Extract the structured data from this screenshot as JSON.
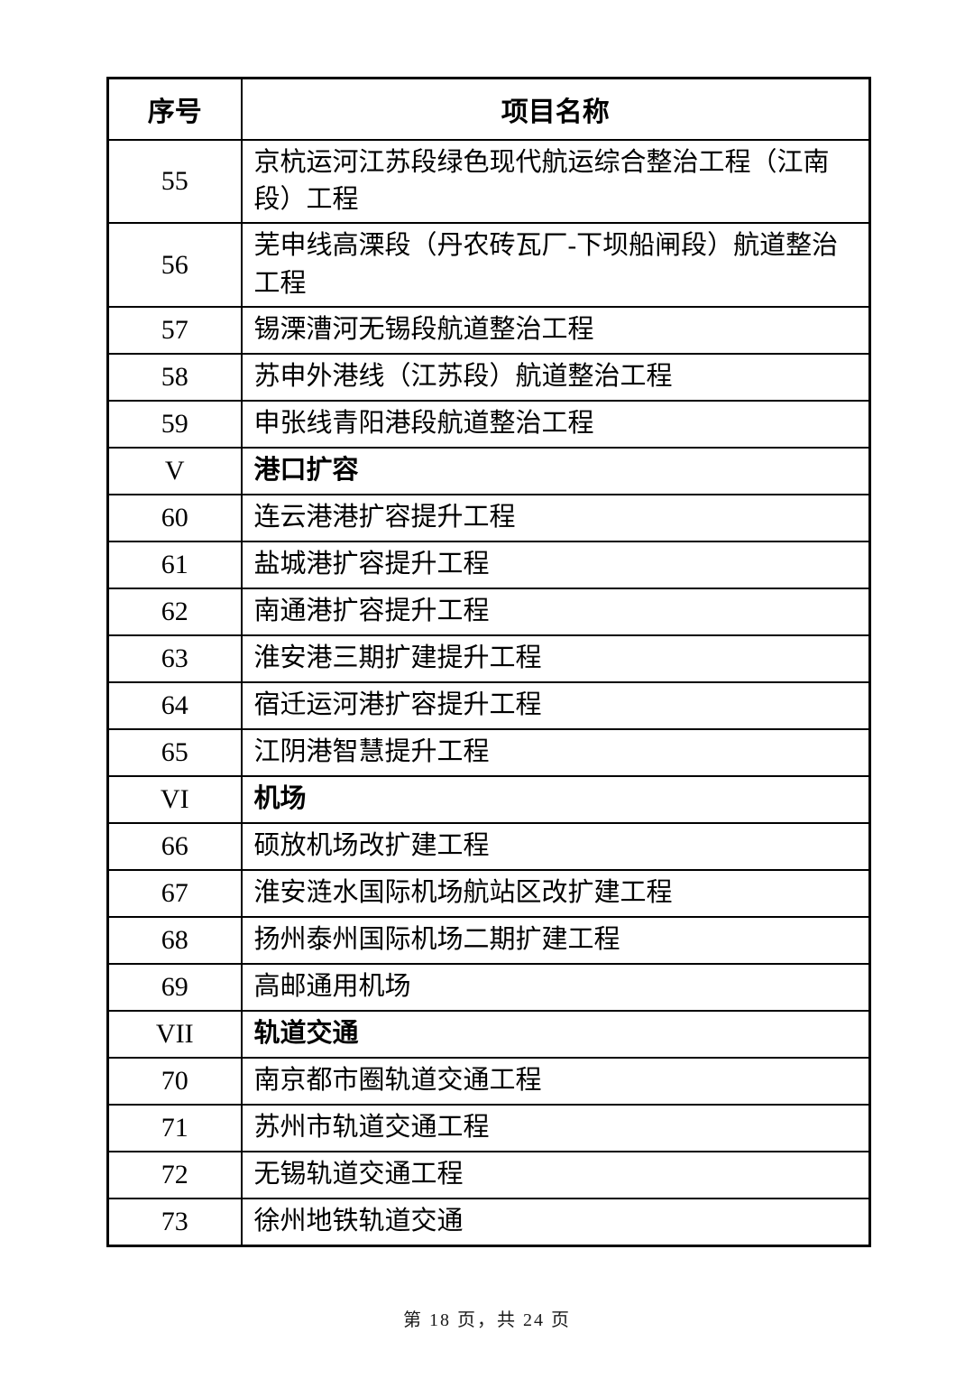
{
  "page": {
    "footer": "第 18 页，共 24 页"
  },
  "table": {
    "headers": [
      "序号",
      "项目名称"
    ],
    "rows": [
      {
        "no": "55",
        "name": "京杭运河江苏段绿色现代航运综合整治工程（江南段）工程",
        "section": false
      },
      {
        "no": "56",
        "name": "芜申线高溧段（丹农砖瓦厂-下坝船闸段）航道整治工程",
        "section": false
      },
      {
        "no": "57",
        "name": "锡溧漕河无锡段航道整治工程",
        "section": false
      },
      {
        "no": "58",
        "name": "苏申外港线（江苏段）航道整治工程",
        "section": false
      },
      {
        "no": "59",
        "name": "申张线青阳港段航道整治工程",
        "section": false
      },
      {
        "no": "V",
        "name": "港口扩容",
        "section": true
      },
      {
        "no": "60",
        "name": "连云港港扩容提升工程",
        "section": false
      },
      {
        "no": "61",
        "name": "盐城港扩容提升工程",
        "section": false
      },
      {
        "no": "62",
        "name": "南通港扩容提升工程",
        "section": false
      },
      {
        "no": "63",
        "name": "淮安港三期扩建提升工程",
        "section": false
      },
      {
        "no": "64",
        "name": "宿迁运河港扩容提升工程",
        "section": false
      },
      {
        "no": "65",
        "name": "江阴港智慧提升工程",
        "section": false
      },
      {
        "no": "VI",
        "name": "机场",
        "section": true
      },
      {
        "no": "66",
        "name": "硕放机场改扩建工程",
        "section": false
      },
      {
        "no": "67",
        "name": "淮安涟水国际机场航站区改扩建工程",
        "section": false
      },
      {
        "no": "68",
        "name": "扬州泰州国际机场二期扩建工程",
        "section": false
      },
      {
        "no": "69",
        "name": "高邮通用机场",
        "section": false
      },
      {
        "no": "VII",
        "name": "轨道交通",
        "section": true
      },
      {
        "no": "70",
        "name": "南京都市圈轨道交通工程",
        "section": false
      },
      {
        "no": "71",
        "name": "苏州市轨道交通工程",
        "section": false
      },
      {
        "no": "72",
        "name": "无锡轨道交通工程",
        "section": false
      },
      {
        "no": "73",
        "name": "徐州地铁轨道交通",
        "section": false
      }
    ]
  }
}
